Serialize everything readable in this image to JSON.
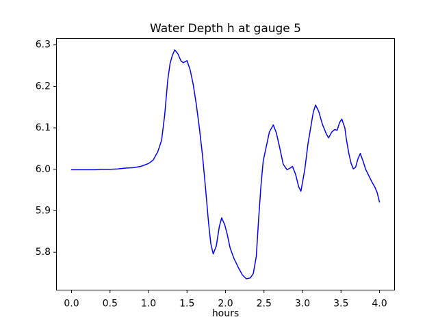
{
  "figure": {
    "title": "Water Depth h at gauge 5",
    "xlabel": "hours"
  },
  "chart_data": {
    "type": "line",
    "title": "Water Depth h at gauge 5",
    "xlabel": "hours",
    "ylabel": "",
    "grid": false,
    "legend": "none",
    "xlim": [
      -0.2,
      4.2
    ],
    "ylim": [
      5.708,
      6.316
    ],
    "xticks": [
      "0.0",
      "0.5",
      "1.0",
      "1.5",
      "2.0",
      "2.5",
      "3.0",
      "3.5",
      "4.0"
    ],
    "yticks": [
      "5.8",
      "5.9",
      "6.0",
      "6.1",
      "6.2",
      "6.3"
    ],
    "x": [
      0.0,
      0.1,
      0.2,
      0.3,
      0.4,
      0.5,
      0.6,
      0.7,
      0.8,
      0.9,
      1.0,
      1.06,
      1.12,
      1.17,
      1.21,
      1.25,
      1.28,
      1.31,
      1.34,
      1.38,
      1.42,
      1.45,
      1.5,
      1.54,
      1.58,
      1.62,
      1.66,
      1.7,
      1.74,
      1.78,
      1.81,
      1.84,
      1.88,
      1.92,
      1.95,
      1.99,
      2.02,
      2.06,
      2.11,
      2.17,
      2.22,
      2.27,
      2.32,
      2.36,
      2.4,
      2.43,
      2.46,
      2.49,
      2.53,
      2.57,
      2.62,
      2.66,
      2.7,
      2.75,
      2.8,
      2.84,
      2.87,
      2.91,
      2.95,
      2.98,
      3.03,
      3.07,
      3.1,
      3.14,
      3.17,
      3.21,
      3.26,
      3.31,
      3.34,
      3.38,
      3.42,
      3.45,
      3.48,
      3.51,
      3.55,
      3.57,
      3.6,
      3.63,
      3.66,
      3.69,
      3.72,
      3.75,
      3.79,
      3.82,
      3.86,
      3.9,
      3.94,
      3.97,
      4.0
    ],
    "series": [
      {
        "name": "water-depth-h",
        "color": "#0000ff",
        "line_width": 1.5,
        "values": [
          5.999,
          5.999,
          5.999,
          5.999,
          6.0,
          6.0,
          6.001,
          6.003,
          6.004,
          6.007,
          6.014,
          6.022,
          6.042,
          6.07,
          6.13,
          6.215,
          6.255,
          6.275,
          6.288,
          6.279,
          6.262,
          6.257,
          6.262,
          6.24,
          6.205,
          6.157,
          6.1,
          6.035,
          5.955,
          5.87,
          5.82,
          5.796,
          5.815,
          5.862,
          5.883,
          5.866,
          5.845,
          5.81,
          5.785,
          5.762,
          5.745,
          5.736,
          5.738,
          5.748,
          5.79,
          5.88,
          5.96,
          6.02,
          6.055,
          6.09,
          6.107,
          6.088,
          6.055,
          6.012,
          5.999,
          6.003,
          6.007,
          5.988,
          5.958,
          5.947,
          6.0,
          6.06,
          6.094,
          6.138,
          6.155,
          6.14,
          6.108,
          6.085,
          6.076,
          6.09,
          6.096,
          6.094,
          6.112,
          6.121,
          6.1,
          6.073,
          6.04,
          6.015,
          6.001,
          6.005,
          6.025,
          6.038,
          6.018,
          6.0,
          5.985,
          5.97,
          5.957,
          5.944,
          5.921
        ]
      }
    ]
  }
}
